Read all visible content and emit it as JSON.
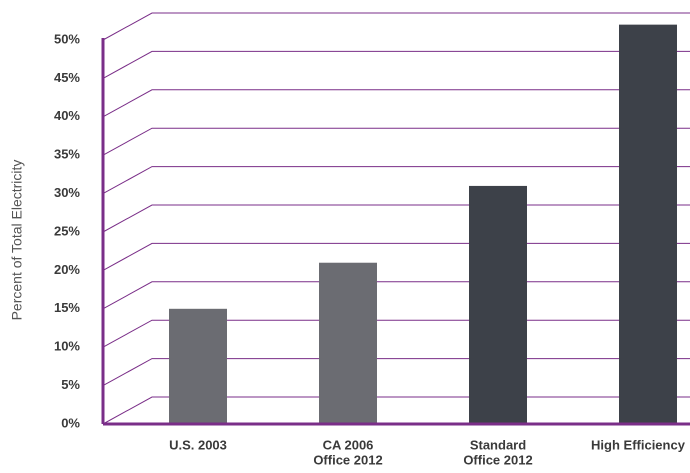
{
  "chart_data": {
    "type": "bar",
    "y_label": "Percent of Total Electricity",
    "categories": [
      [
        "U.S. 2003"
      ],
      [
        "CA 2006",
        "Office 2012"
      ],
      [
        "Standard",
        "Office 2012"
      ],
      [
        "High Efficiency"
      ]
    ],
    "values": [
      15,
      21,
      31,
      52
    ],
    "colors": [
      "#6b6c72",
      "#6b6c72",
      "#3d4149",
      "#3d4149"
    ],
    "grid_color": "#7a2e88",
    "ylim": [
      0,
      55
    ],
    "yticks": [
      {
        "value": 0,
        "label": "0%"
      },
      {
        "value": 5,
        "label": "5%"
      },
      {
        "value": 10,
        "label": "10%"
      },
      {
        "value": 15,
        "label": "15%"
      },
      {
        "value": 20,
        "label": "20%"
      },
      {
        "value": 25,
        "label": "25%"
      },
      {
        "value": 30,
        "label": "30%"
      },
      {
        "value": 35,
        "label": "35%"
      },
      {
        "value": 40,
        "label": "40%"
      },
      {
        "value": 45,
        "label": "45%"
      },
      {
        "value": 50,
        "label": "50%"
      }
    ],
    "grid": true
  }
}
